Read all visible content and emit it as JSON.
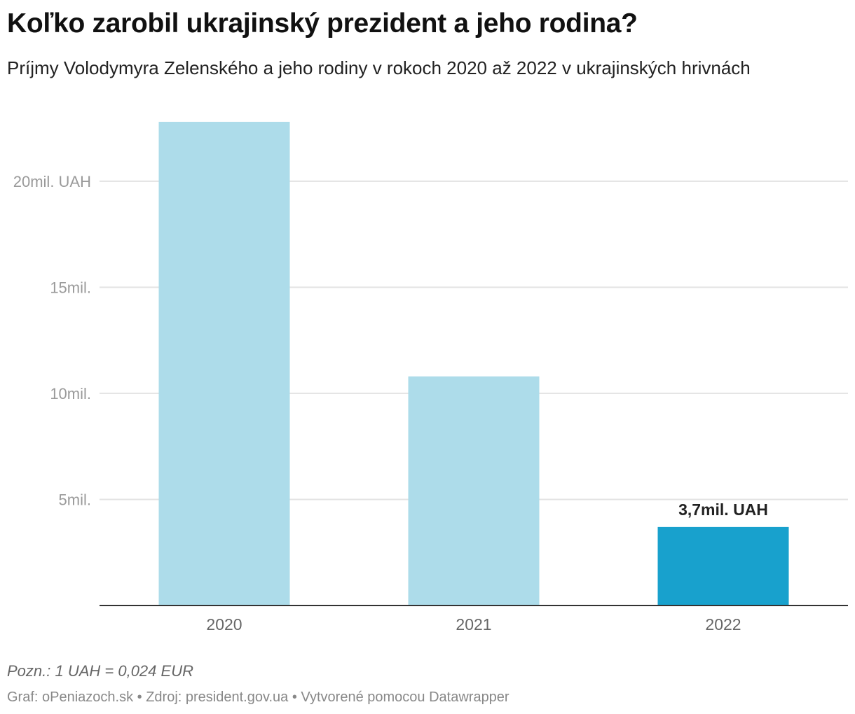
{
  "header": {
    "title": "Koľko zarobil ukrajinský prezident a jeho rodina?",
    "subtitle": "Príjmy Volodymyra Zelenského a jeho rodiny v rokoch 2020 až 2022 v ukrajinských hrivnách"
  },
  "footer": {
    "note": "Pozn.: 1 UAH = 0,024 EUR",
    "source": "Graf: oPeniazoch.sk • Zdroj: president.gov.ua • Vytvorené pomocou Datawrapper"
  },
  "chart_data": {
    "type": "bar",
    "title": "Koľko zarobil ukrajinský prezident a jeho rodina?",
    "subtitle": "Príjmy Volodymyra Zelenského a jeho rodiny v rokoch 2020 až 2022 v ukrajinských hrivnách",
    "categories": [
      "2020",
      "2021",
      "2022"
    ],
    "values": [
      22.8,
      10.8,
      3.7
    ],
    "unit": "mil. UAH",
    "ylim": [
      0,
      22.8
    ],
    "yticks": [
      {
        "value": 5,
        "label": "5mil."
      },
      {
        "value": 10,
        "label": "10mil."
      },
      {
        "value": 15,
        "label": "15mil."
      },
      {
        "value": 20,
        "label": "20mil. UAH"
      }
    ],
    "grid": true,
    "colors": [
      "#addcea",
      "#addcea",
      "#18a1cd"
    ],
    "highlight_index": 2,
    "data_labels": [
      {
        "index": 2,
        "text": "3,7mil. UAH"
      }
    ],
    "xlabel": "",
    "ylabel": ""
  }
}
